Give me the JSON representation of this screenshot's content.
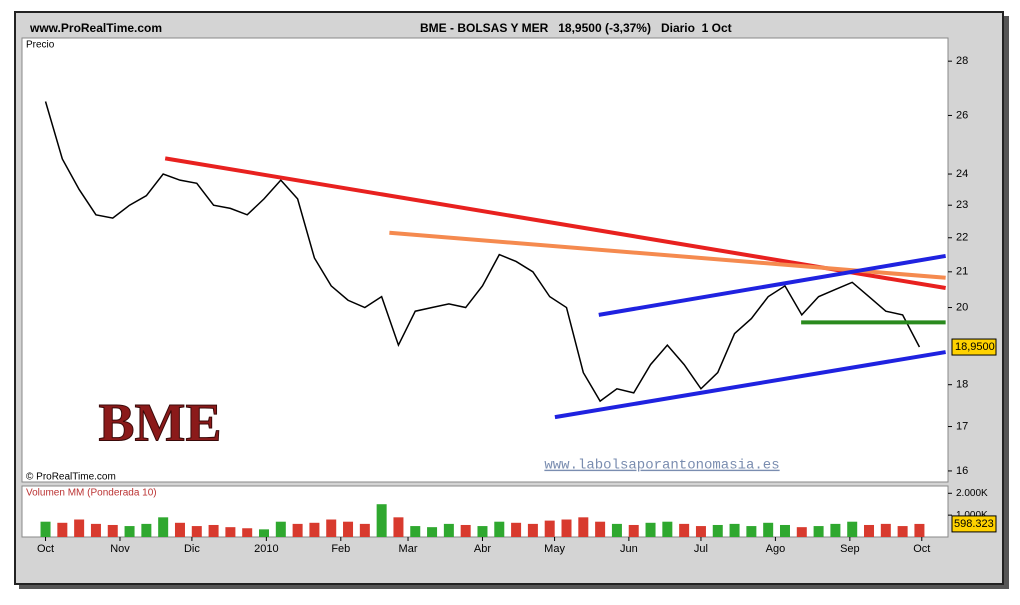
{
  "header": {
    "site": "www.ProRealTime.com",
    "title": "BME - BOLSAS Y MER   18,9500 (-3,37%)   Diario  1 Oct"
  },
  "chart_data": [
    {
      "type": "line",
      "panel_label": "Precio",
      "copyright": "© ProRealTime.com",
      "watermark": "BME",
      "website": "www.labolsaporantonomasia.es",
      "log_scale": true,
      "x": [
        0,
        1,
        2,
        3,
        4,
        5,
        6,
        7,
        8,
        9,
        10,
        11,
        12,
        13,
        14,
        15,
        16,
        17,
        18,
        19,
        20,
        21,
        22,
        23,
        24,
        25,
        26,
        27,
        28,
        29,
        30,
        31,
        32,
        33,
        34,
        35,
        36,
        37,
        38,
        39,
        40,
        41,
        42,
        43,
        44,
        45,
        46,
        47,
        48,
        49,
        50,
        51,
        52
      ],
      "xlim": [
        -1.4,
        53.7
      ],
      "xticks": [
        {
          "value": 0,
          "label": "Oct"
        },
        {
          "value": 4.43,
          "label": "Nov"
        },
        {
          "value": 8.71,
          "label": "Dic"
        },
        {
          "value": 13.14,
          "label": "2010"
        },
        {
          "value": 17.57,
          "label": "Feb"
        },
        {
          "value": 21.57,
          "label": "Mar"
        },
        {
          "value": 26,
          "label": "Abr"
        },
        {
          "value": 30.29,
          "label": "May"
        },
        {
          "value": 34.71,
          "label": "Jun"
        },
        {
          "value": 39,
          "label": "Jul"
        },
        {
          "value": 43.43,
          "label": "Ago"
        },
        {
          "value": 47.86,
          "label": "Sep"
        },
        {
          "value": 52.14,
          "label": "Oct"
        }
      ],
      "ylim": [
        15.76,
        28.9
      ],
      "yticks": [
        16,
        17,
        18,
        20,
        21,
        22,
        23,
        24,
        26,
        28
      ],
      "series": [
        {
          "color": "#000000",
          "values": [
            26.5,
            24.5,
            23.5,
            22.7,
            22.6,
            23.0,
            23.3,
            24.0,
            23.8,
            23.7,
            23.0,
            22.9,
            22.7,
            23.2,
            23.8,
            23.2,
            21.4,
            20.6,
            20.2,
            20.0,
            20.3,
            19.0,
            19.9,
            20.0,
            20.1,
            20.0,
            20.6,
            21.5,
            21.3,
            21.0,
            20.3,
            20.0,
            18.3,
            17.6,
            17.9,
            17.8,
            18.5,
            19.0,
            18.5,
            17.9,
            18.3,
            19.3,
            19.7,
            20.3,
            20.6,
            19.8,
            20.3,
            20.5,
            20.7,
            20.3,
            19.9,
            19.8,
            18.95
          ],
          "value_labels": [
            null,
            null,
            null,
            null,
            null,
            null,
            null,
            null,
            null,
            null,
            null,
            null,
            null,
            null,
            null,
            null,
            null,
            null,
            null,
            null,
            null,
            null,
            null,
            null,
            null,
            null,
            null,
            null,
            null,
            null,
            null,
            null,
            null,
            null,
            null,
            null,
            null,
            null,
            null,
            null,
            null,
            null,
            null,
            null,
            null,
            null,
            null,
            null,
            null,
            null,
            null,
            null,
            "18,9500"
          ]
        }
      ],
      "trendlines": [
        {
          "color": "#e8211f",
          "x": [
            7.12,
            53.56
          ],
          "values": [
            24.52,
            20.54
          ]
        },
        {
          "color": "#f58a4f",
          "x": [
            20.46,
            53.56
          ],
          "values": [
            22.15,
            20.83
          ]
        },
        {
          "color": "#1f22e0",
          "x": [
            32.92,
            53.56
          ],
          "values": [
            19.8,
            21.46
          ]
        },
        {
          "color": "#1f22e0",
          "x": [
            30.31,
            53.56
          ],
          "values": [
            17.22,
            18.82
          ]
        },
        {
          "color": "#2a8a1e",
          "x": [
            44.96,
            53.56
          ],
          "values": [
            19.6,
            19.6
          ]
        }
      ]
    },
    {
      "type": "bar",
      "panel_label": "Volumen MM (Ponderada 10)",
      "x": [
        0,
        1,
        2,
        3,
        4,
        5,
        6,
        7,
        8,
        9,
        10,
        11,
        12,
        13,
        14,
        15,
        16,
        17,
        18,
        19,
        20,
        21,
        22,
        23,
        24,
        25,
        26,
        27,
        28,
        29,
        30,
        31,
        32,
        33,
        34,
        35,
        36,
        37,
        38,
        39,
        40,
        41,
        42,
        43,
        44,
        45,
        46,
        47,
        48,
        49,
        50,
        51,
        52
      ],
      "xlim": [
        -1.4,
        53.7
      ],
      "ylim": [
        0,
        2333
      ],
      "yticks": [
        {
          "value": 1000,
          "label": "1.000K"
        },
        {
          "value": 2000,
          "label": "2.000K"
        }
      ],
      "up_color": "#2fa82f",
      "down_color": "#d83a2e",
      "values": [
        700,
        650,
        800,
        600,
        550,
        500,
        600,
        900,
        650,
        500,
        550,
        450,
        400,
        350,
        700,
        600,
        650,
        800,
        700,
        600,
        1500,
        900,
        500,
        450,
        600,
        550,
        500,
        700,
        650,
        600,
        750,
        800,
        900,
        700,
        600,
        550,
        650,
        700,
        600,
        500,
        550,
        600,
        500,
        650,
        550,
        450,
        500,
        600,
        700,
        550,
        600,
        500,
        598.323
      ],
      "value_labels": [
        null,
        null,
        null,
        null,
        null,
        null,
        null,
        null,
        null,
        null,
        null,
        null,
        null,
        null,
        null,
        null,
        null,
        null,
        null,
        null,
        null,
        null,
        null,
        null,
        null,
        null,
        null,
        null,
        null,
        null,
        null,
        null,
        null,
        null,
        null,
        null,
        null,
        null,
        null,
        null,
        null,
        null,
        null,
        null,
        null,
        null,
        null,
        null,
        null,
        null,
        null,
        null,
        "598.323"
      ]
    }
  ]
}
